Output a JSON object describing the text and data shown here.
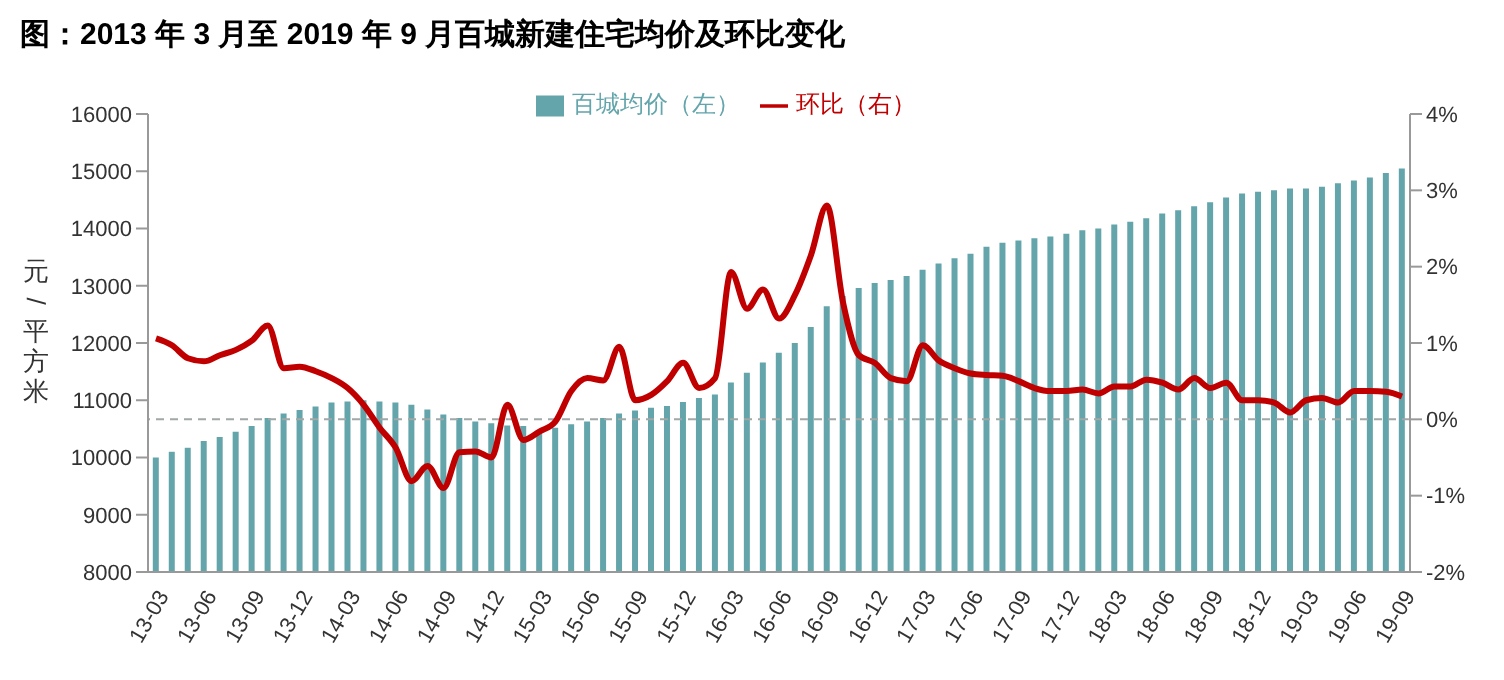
{
  "chart_data": {
    "type": "bar",
    "title": "图：2013 年 3 月至 2019 年 9 月百城新建住宅均价及环比变化",
    "ylabel": "元/平方米",
    "categories": [
      "13-03",
      null,
      null,
      "13-06",
      null,
      null,
      "13-09",
      null,
      null,
      "13-12",
      null,
      null,
      "14-03",
      null,
      null,
      "14-06",
      null,
      null,
      "14-09",
      null,
      null,
      "14-12",
      null,
      null,
      "15-03",
      null,
      null,
      "15-06",
      null,
      null,
      "15-09",
      null,
      null,
      "15-12",
      null,
      null,
      "16-03",
      null,
      null,
      "16-06",
      null,
      null,
      "16-09",
      null,
      null,
      "16-12",
      null,
      null,
      "17-03",
      null,
      null,
      "17-06",
      null,
      null,
      "17-09",
      null,
      null,
      "17-12",
      null,
      null,
      "18-03",
      null,
      null,
      "18-06",
      null,
      null,
      "18-09",
      null,
      null,
      "18-12",
      null,
      null,
      "19-03",
      null,
      null,
      "19-06",
      null,
      null,
      "19-09"
    ],
    "series": [
      {
        "name": "百城均价（左）",
        "color": "#63a5ab",
        "values": [
          10000,
          10100,
          10170,
          10290,
          10360,
          10450,
          10550,
          10690,
          10770,
          10830,
          10890,
          10960,
          10980,
          11000,
          10980,
          10960,
          10920,
          10840,
          10750,
          10690,
          10630,
          10600,
          10560,
          10550,
          10460,
          10520,
          10580,
          10630,
          10690,
          10770,
          10820,
          10870,
          10900,
          10970,
          11040,
          11100,
          11310,
          11480,
          11660,
          11830,
          12000,
          12280,
          12640,
          12820,
          12960,
          13050,
          13100,
          13170,
          13280,
          13390,
          13480,
          13560,
          13680,
          13750,
          13790,
          13830,
          13860,
          13910,
          13970,
          14000,
          14070,
          14120,
          14180,
          14260,
          14320,
          14390,
          14460,
          14540,
          14610,
          14640,
          14670,
          14700,
          14700,
          14730,
          14790,
          14840,
          14890,
          14970,
          15050
        ]
      },
      {
        "name": "环比（右）",
        "type": "line",
        "axis": "y2",
        "color": "#c00000",
        "values": [
          1.06,
          0.97,
          0.8,
          0.76,
          0.84,
          0.91,
          1.03,
          1.23,
          0.67,
          0.69,
          0.63,
          0.54,
          0.41,
          0.19,
          -0.11,
          -0.37,
          -0.81,
          -0.61,
          -0.9,
          -0.43,
          -0.42,
          -0.5,
          0.19,
          -0.27,
          -0.16,
          -0.03,
          0.37,
          0.54,
          0.51,
          0.95,
          0.25,
          0.32,
          0.5,
          0.74,
          0.41,
          0.54,
          1.93,
          1.45,
          1.7,
          1.32,
          1.63,
          2.15,
          2.8,
          1.54,
          0.84,
          0.74,
          0.54,
          0.5,
          0.97,
          0.77,
          0.67,
          0.6,
          0.58,
          0.57,
          0.5,
          0.41,
          0.37,
          0.37,
          0.39,
          0.34,
          0.43,
          0.43,
          0.52,
          0.48,
          0.39,
          0.54,
          0.41,
          0.48,
          0.25,
          0.25,
          0.22,
          0.09,
          0.25,
          0.28,
          0.22,
          0.37,
          0.37,
          0.36,
          0.3
        ]
      }
    ],
    "ylim": [
      8000,
      16000
    ],
    "yticks": [
      8000,
      9000,
      10000,
      11000,
      12000,
      13000,
      14000,
      15000,
      16000
    ],
    "y2lim": [
      -2,
      4
    ],
    "y2ticks": [
      {
        "value": -2,
        "label": "-2%"
      },
      {
        "value": -1,
        "label": "-1%"
      },
      {
        "value": 0,
        "label": "0%"
      },
      {
        "value": 1,
        "label": "1%"
      },
      {
        "value": 2,
        "label": "2%"
      },
      {
        "value": 3,
        "label": "3%"
      },
      {
        "value": 4,
        "label": "4%"
      }
    ],
    "ref_lines": [
      {
        "axis": "y2",
        "value": 0,
        "color": "#a0a8a8",
        "line_style": "dashed"
      }
    ],
    "legend": "top",
    "grid": false,
    "marker": "none"
  }
}
